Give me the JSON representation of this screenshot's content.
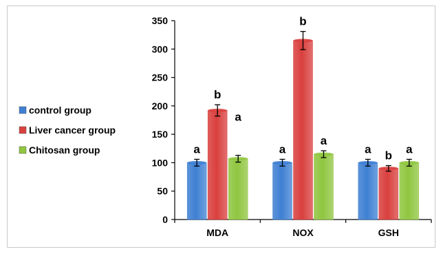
{
  "chart_data": {
    "type": "bar",
    "categories": [
      "MDA",
      "NOX",
      "GSH"
    ],
    "series": [
      {
        "name": "control group",
        "color": "#3f80d3",
        "values": [
          100,
          100,
          100
        ],
        "errors": [
          6,
          6,
          6
        ],
        "labels": [
          "a",
          "a",
          "a"
        ]
      },
      {
        "name": "Liver cancer group",
        "color": "#d9403e",
        "values": [
          192,
          315,
          90
        ],
        "errors": [
          10,
          16,
          5
        ],
        "labels": [
          "b",
          "b",
          "b"
        ]
      },
      {
        "name": "Chitosan group",
        "color": "#90c640",
        "values": [
          107,
          115,
          100
        ],
        "errors": [
          6,
          6,
          6
        ],
        "labels": [
          "a",
          "a",
          "a"
        ]
      }
    ],
    "ylim": [
      0,
      350
    ],
    "yticks": [
      0,
      50,
      100,
      150,
      200,
      250,
      300,
      350
    ],
    "legend_position": "left",
    "grid": false
  }
}
